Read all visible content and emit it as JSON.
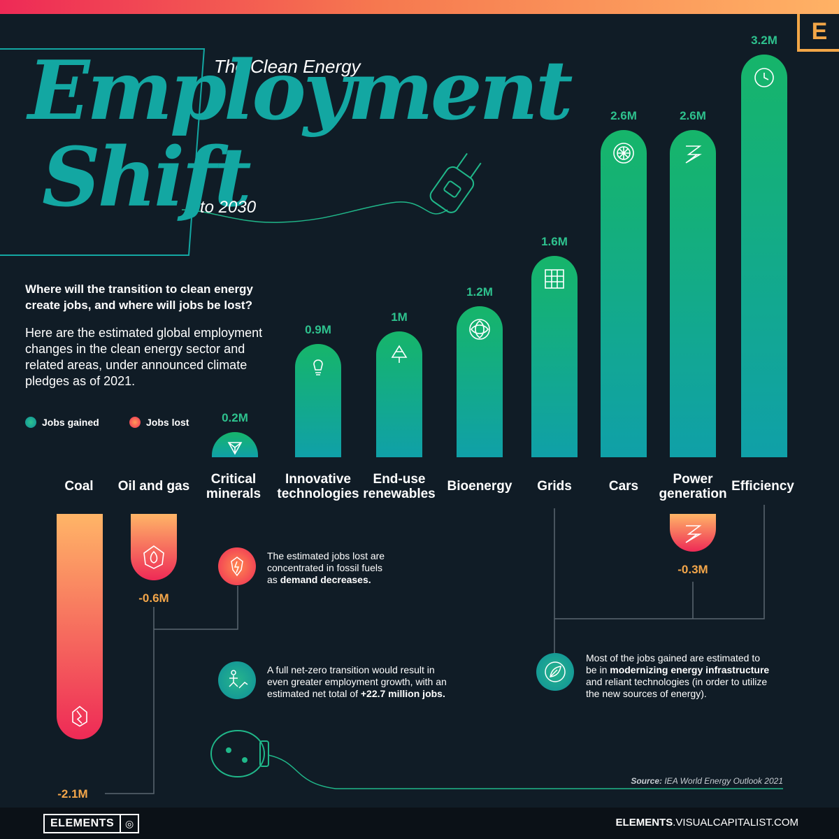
{
  "header": {
    "subtitle": "The Clean Energy",
    "title_line1": "Employment",
    "title_line2": "Shift",
    "suffix": "to 2030",
    "brand_letter": "E"
  },
  "intro": {
    "question": "Where will the transition to clean energy create jobs, and where will jobs be lost?",
    "body": "Here are the estimated global employment changes in the clean energy sector and related areas, under announced climate pledges as of 2021."
  },
  "legend": {
    "gained": "Jobs gained",
    "lost": "Jobs lost",
    "gained_color": "#12a79f",
    "lost_color": "#ee2a56"
  },
  "chart_data": {
    "type": "bar",
    "title": "The Clean Energy Employment Shift to 2030",
    "categories": [
      "Coal",
      "Oil and gas",
      "Critical minerals",
      "Innovative technologies",
      "End-use renewables",
      "Bioenergy",
      "Grids",
      "Cars",
      "Power generation",
      "Efficiency"
    ],
    "series": [
      {
        "name": "Jobs gained",
        "values": [
          0,
          0,
          0.2,
          0.9,
          1,
          1.2,
          1.6,
          2.6,
          2.6,
          3.2
        ],
        "labels": [
          "",
          "",
          "0.2M",
          "0.9M",
          "1M",
          "1.2M",
          "1.6M",
          "2.6M",
          "2.6M",
          "3.2M"
        ]
      },
      {
        "name": "Jobs lost",
        "values": [
          -2.1,
          -0.6,
          0,
          0,
          0,
          0,
          0,
          0,
          -0.3,
          0
        ],
        "labels": [
          "-2.1M",
          "-0.6M",
          "",
          "",
          "",
          "",
          "",
          "",
          "-0.3M",
          ""
        ]
      }
    ],
    "unit": "million jobs"
  },
  "notes": {
    "fossil": [
      "The estimated jobs lost are",
      "concentrated in fossil fuels",
      "as ",
      "demand decreases."
    ],
    "netzero": [
      "A full net-zero transition would result in",
      "even greater employment growth, with an",
      "estimated net total of ",
      "+22.7 million jobs."
    ],
    "infra": [
      "Most of the jobs gained are estimated to",
      "be in ",
      "modernizing energy infrastructure",
      "and reliant technologies (in order to utilize",
      "the new sources of energy)."
    ]
  },
  "source": {
    "label": "Source:",
    "text": " IEA World Energy Outlook 2021"
  },
  "footer": {
    "brand": "ELEMENTS",
    "site_bold": "ELEMENTS",
    "site_rest": ".VISUALCAPITALIST.COM"
  }
}
